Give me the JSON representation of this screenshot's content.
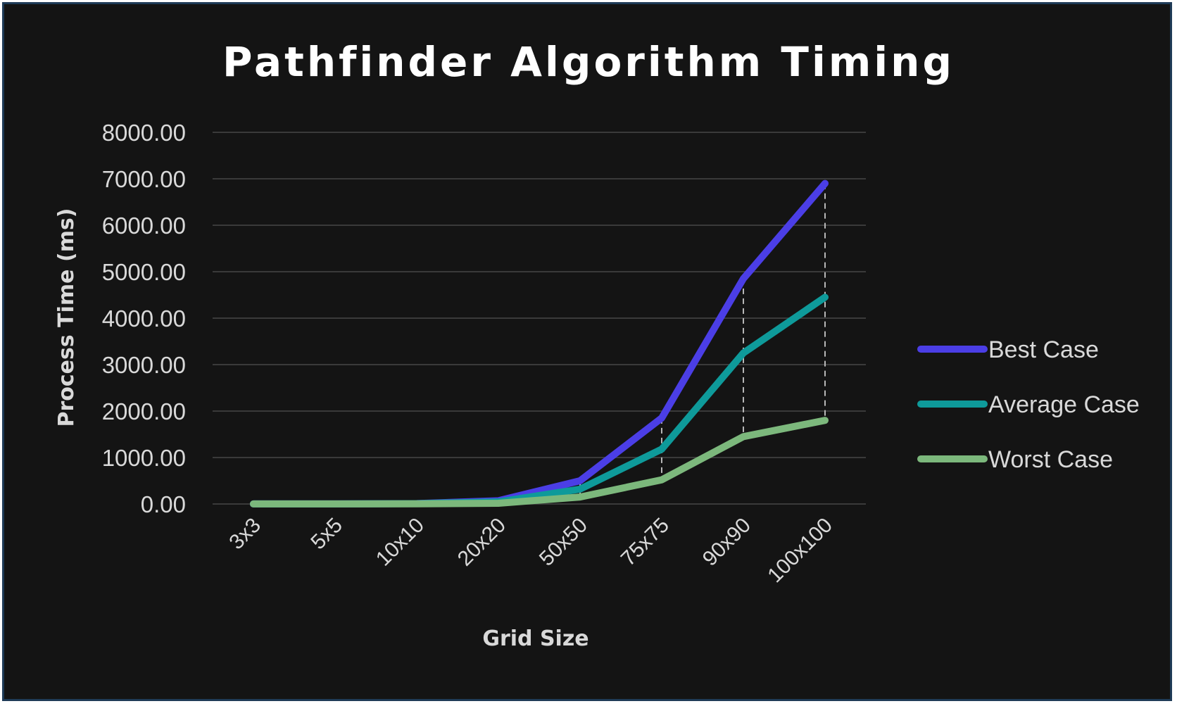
{
  "chart_data": {
    "type": "line",
    "title": "Pathfinder Algorithm Timing",
    "xlabel": "Grid Size",
    "ylabel": "Process Time (ms)",
    "categories": [
      "3x3",
      "5x5",
      "10x10",
      "20x20",
      "50x50",
      "75x75",
      "90x90",
      "100x100"
    ],
    "y_ticks": [
      "0.00",
      "1000.00",
      "2000.00",
      "3000.00",
      "4000.00",
      "5000.00",
      "6000.00",
      "7000.00",
      "8000.00"
    ],
    "ylim": [
      0,
      8000
    ],
    "grid": true,
    "legend_position": "right",
    "drop_lines": true,
    "series": [
      {
        "name": "Best Case",
        "color": "#4b3ee6",
        "values": [
          1,
          2,
          10,
          70,
          500,
          1850,
          4850,
          6900
        ]
      },
      {
        "name": "Average Case",
        "color": "#0e9a9a",
        "values": [
          1,
          2,
          8,
          45,
          320,
          1180,
          3250,
          4450
        ]
      },
      {
        "name": "Worst Case",
        "color": "#7cb87c",
        "values": [
          1,
          1,
          4,
          15,
          150,
          520,
          1450,
          1800
        ]
      }
    ]
  }
}
